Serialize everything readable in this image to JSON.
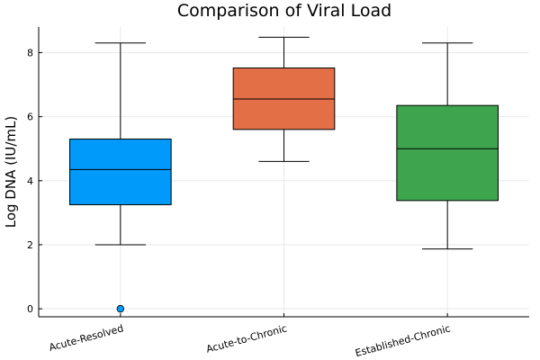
{
  "chart_data": {
    "type": "box",
    "title": "Comparison of Viral Load",
    "xlabel": "",
    "ylabel": "Log DNA (IU/mL)",
    "ylim": [
      -0.25,
      8.8
    ],
    "yticks": [
      0,
      2,
      4,
      6,
      8
    ],
    "grid": true,
    "legend": "none",
    "categories": [
      "Acute-Resolved",
      "Acute-to-Chronic",
      "Established-Chronic"
    ],
    "series": [
      {
        "color": "#009AFA",
        "whisker_low": 2.0,
        "q1": 3.25,
        "median": 4.35,
        "q3": 5.3,
        "whisker_high": 8.3,
        "outliers": [
          0.0
        ]
      },
      {
        "color": "#E36F47",
        "whisker_low": 4.6,
        "q1": 5.6,
        "median": 6.55,
        "q3": 7.52,
        "whisker_high": 8.48,
        "outliers": []
      },
      {
        "color": "#3EA44E",
        "whisker_low": 1.87,
        "q1": 3.38,
        "median": 5.0,
        "q3": 6.35,
        "whisker_high": 8.3,
        "outliers": []
      }
    ]
  }
}
